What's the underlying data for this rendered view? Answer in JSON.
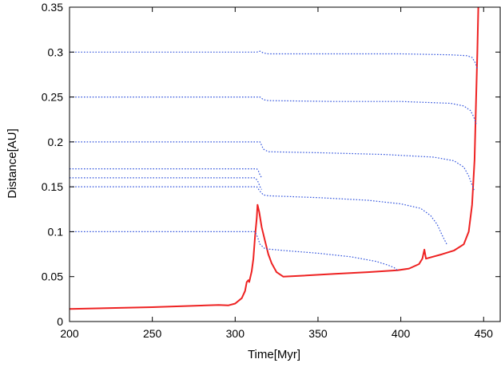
{
  "chart_data": {
    "type": "line",
    "title": "",
    "xlabel": "Time[Myr]",
    "ylabel": "Distance[AU]",
    "xlim": [
      200,
      460
    ],
    "ylim": [
      0,
      0.35
    ],
    "x_ticks": [
      200,
      250,
      300,
      350,
      400,
      450
    ],
    "y_ticks": [
      0,
      0.05,
      0.1,
      0.15,
      0.2,
      0.25,
      0.3,
      0.35
    ],
    "x_tick_labels": [
      "200",
      "250",
      "300",
      "350",
      "400",
      "450"
    ],
    "y_tick_labels": [
      "0",
      "0.05",
      "0.1",
      "0.15",
      "0.2",
      "0.25",
      "0.3",
      "0.35"
    ],
    "grid": false,
    "legend": "none",
    "series": [
      {
        "color": "#ee2222",
        "style": "solid",
        "points": [
          [
            200,
            0.014
          ],
          [
            250,
            0.016
          ],
          [
            290,
            0.0185
          ],
          [
            296,
            0.018
          ],
          [
            300,
            0.02
          ],
          [
            304,
            0.026
          ],
          [
            306,
            0.034
          ],
          [
            307,
            0.044
          ],
          [
            308,
            0.046
          ],
          [
            308.5,
            0.044
          ],
          [
            310,
            0.056
          ],
          [
            311,
            0.07
          ],
          [
            312,
            0.095
          ],
          [
            313,
            0.115
          ],
          [
            313.5,
            0.13
          ],
          [
            314.5,
            0.122
          ],
          [
            316,
            0.105
          ],
          [
            318,
            0.09
          ],
          [
            320,
            0.075
          ],
          [
            322,
            0.065
          ],
          [
            325,
            0.055
          ],
          [
            329,
            0.05
          ],
          [
            340,
            0.051
          ],
          [
            360,
            0.053
          ],
          [
            380,
            0.055
          ],
          [
            398,
            0.057
          ],
          [
            405,
            0.059
          ],
          [
            411,
            0.064
          ],
          [
            413,
            0.07
          ],
          [
            414.2,
            0.08
          ],
          [
            415.2,
            0.07
          ],
          [
            425,
            0.075
          ],
          [
            432,
            0.079
          ],
          [
            438,
            0.086
          ],
          [
            441,
            0.1
          ],
          [
            443,
            0.13
          ],
          [
            444.5,
            0.18
          ],
          [
            445.5,
            0.25
          ],
          [
            446.2,
            0.3
          ],
          [
            446.8,
            0.35
          ]
        ]
      },
      {
        "color": "#3355dd",
        "style": "dotted",
        "points": [
          [
            200,
            0.1
          ],
          [
            310,
            0.1
          ],
          [
            312,
            0.1
          ],
          [
            313.5,
            0.094
          ],
          [
            315,
            0.086
          ],
          [
            318,
            0.081
          ],
          [
            330,
            0.079
          ],
          [
            350,
            0.076
          ],
          [
            370,
            0.072
          ],
          [
            385,
            0.067
          ],
          [
            392,
            0.063
          ],
          [
            396,
            0.06
          ],
          [
            398,
            0.057
          ]
        ]
      },
      {
        "color": "#3355dd",
        "style": "dotted",
        "points": [
          [
            200,
            0.15
          ],
          [
            310,
            0.15
          ],
          [
            313,
            0.15
          ],
          [
            315,
            0.145
          ],
          [
            317,
            0.141
          ],
          [
            320,
            0.14
          ],
          [
            350,
            0.138
          ],
          [
            380,
            0.135
          ],
          [
            400,
            0.131
          ],
          [
            412,
            0.126
          ],
          [
            418,
            0.118
          ],
          [
            422,
            0.108
          ],
          [
            425,
            0.096
          ],
          [
            428,
            0.085
          ]
        ]
      },
      {
        "color": "#3355dd",
        "style": "dotted",
        "points": [
          [
            200,
            0.16
          ],
          [
            312,
            0.16
          ],
          [
            313.5,
            0.157
          ],
          [
            315,
            0.15
          ],
          [
            316,
            0.147
          ]
        ]
      },
      {
        "color": "#3355dd",
        "style": "dotted",
        "points": [
          [
            200,
            0.17
          ],
          [
            313,
            0.17
          ],
          [
            314,
            0.168
          ],
          [
            315,
            0.163
          ],
          [
            316,
            0.16
          ]
        ]
      },
      {
        "color": "#3355dd",
        "style": "dotted",
        "points": [
          [
            200,
            0.2
          ],
          [
            312,
            0.2
          ],
          [
            315,
            0.2
          ],
          [
            317,
            0.192
          ],
          [
            320,
            0.189
          ],
          [
            350,
            0.188
          ],
          [
            390,
            0.186
          ],
          [
            420,
            0.183
          ],
          [
            432,
            0.179
          ],
          [
            438,
            0.172
          ],
          [
            441,
            0.162
          ],
          [
            443,
            0.152
          ],
          [
            444.5,
            0.145
          ]
        ]
      },
      {
        "color": "#3355dd",
        "style": "dotted",
        "points": [
          [
            200,
            0.25
          ],
          [
            313,
            0.25
          ],
          [
            315,
            0.25
          ],
          [
            317,
            0.247
          ],
          [
            320,
            0.246
          ],
          [
            360,
            0.245
          ],
          [
            400,
            0.245
          ],
          [
            430,
            0.243
          ],
          [
            438,
            0.24
          ],
          [
            442,
            0.235
          ],
          [
            444,
            0.228
          ],
          [
            445.5,
            0.22
          ]
        ]
      },
      {
        "color": "#3355dd",
        "style": "dotted",
        "points": [
          [
            200,
            0.3
          ],
          [
            313,
            0.3
          ],
          [
            315,
            0.301
          ],
          [
            317,
            0.299
          ],
          [
            320,
            0.298
          ],
          [
            360,
            0.298
          ],
          [
            400,
            0.298
          ],
          [
            430,
            0.297
          ],
          [
            440,
            0.296
          ],
          [
            443,
            0.294
          ],
          [
            445,
            0.288
          ],
          [
            446,
            0.282
          ]
        ]
      }
    ]
  }
}
